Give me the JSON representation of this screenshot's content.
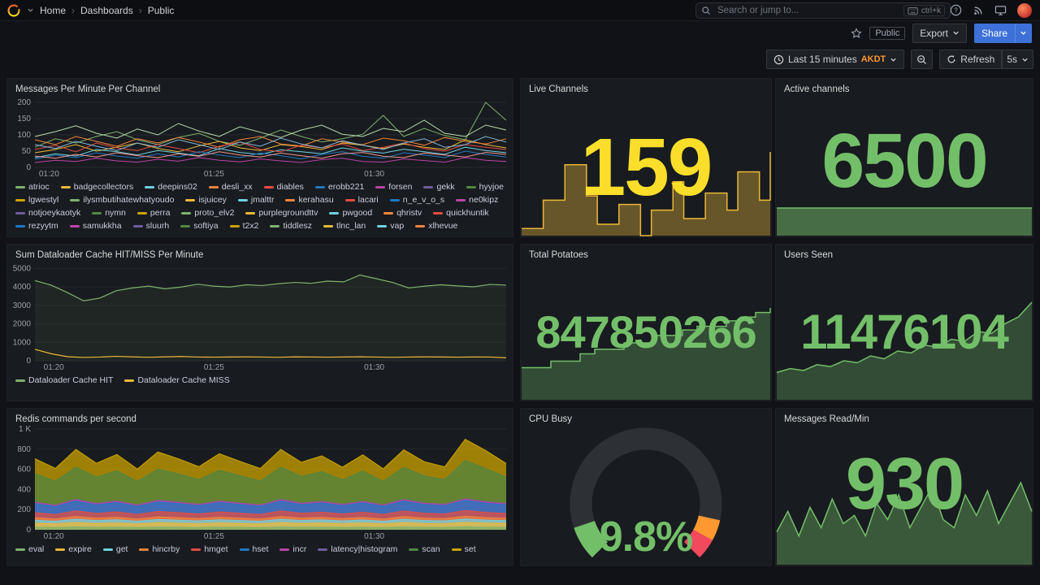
{
  "nav": {
    "breadcrumb": [
      "Home",
      "Dashboards",
      "Public"
    ],
    "separator": "›",
    "search_placeholder": "Search or jump to...",
    "search_shortcut": "ctrl+k"
  },
  "toolbar": {
    "tag": "Public",
    "export_label": "Export",
    "share_label": "Share"
  },
  "timebar": {
    "range": "Last 15 minutes",
    "timezone": "AKDT",
    "refresh_label": "Refresh",
    "interval": "5s"
  },
  "colors": {
    "timezone": "#FF9830",
    "share_blue": "#3D71D9",
    "stat_yellow": "#FADE2A",
    "stat_green": "#73BF69"
  },
  "panels": [
    {
      "title": "Messages Per Minute Per Channel",
      "kind": "timeseries",
      "ymax": 210,
      "y_ticks": [
        0,
        50,
        100,
        150,
        200
      ],
      "y_tick_labels": [
        "0",
        "50",
        "100",
        "150",
        "200"
      ],
      "x_ticks": [
        "01:20",
        "01:25",
        "01:30"
      ],
      "x_tick_pos": [
        0.03,
        0.38,
        0.72
      ],
      "legend": [
        {
          "label": "atrioc",
          "color": "#7EB26D"
        },
        {
          "label": "badgecollectors",
          "color": "#EAB839"
        },
        {
          "label": "deepins02",
          "color": "#6ED0E0"
        },
        {
          "label": "desli_xx",
          "color": "#EF843C"
        },
        {
          "label": "diables",
          "color": "#E24D42"
        },
        {
          "label": "erobb221",
          "color": "#1F78C1"
        },
        {
          "label": "forsen",
          "color": "#BA43A9"
        },
        {
          "label": "gekk",
          "color": "#705DA0"
        },
        {
          "label": "hyyjoe",
          "color": "#508642"
        },
        {
          "label": "lgwestyl",
          "color": "#CCA300"
        },
        {
          "label": "ilysmbutihatewhatyoudo",
          "color": "#7EB26D"
        },
        {
          "label": "isjuicey",
          "color": "#EAB839"
        },
        {
          "label": "jmalttr",
          "color": "#6ED0E0"
        },
        {
          "label": "kerahasu",
          "color": "#EF843C"
        },
        {
          "label": "lacari",
          "color": "#E24D42"
        },
        {
          "label": "n_e_v_o_s",
          "color": "#1F78C1"
        },
        {
          "label": "ne0kipz",
          "color": "#BA43A9"
        },
        {
          "label": "notjoeykaotyk",
          "color": "#705DA0"
        },
        {
          "label": "nymn",
          "color": "#508642"
        },
        {
          "label": "perra",
          "color": "#CCA300"
        },
        {
          "label": "proto_elv2",
          "color": "#7EB26D"
        },
        {
          "label": "purplegroundttv",
          "color": "#EAB839"
        },
        {
          "label": "pwgood",
          "color": "#6ED0E0"
        },
        {
          "label": "qhristv",
          "color": "#EF843C"
        },
        {
          "label": "quickhuntik",
          "color": "#E24D42"
        },
        {
          "label": "rezyytm",
          "color": "#1F78C1"
        },
        {
          "label": "samukkha",
          "color": "#BA43A9"
        },
        {
          "label": "sluurh",
          "color": "#705DA0"
        },
        {
          "label": "softiya",
          "color": "#508642"
        },
        {
          "label": "t2x2",
          "color": "#CCA300"
        },
        {
          "label": "tiddlesz",
          "color": "#7EB26D"
        },
        {
          "label": "tlnc_lan",
          "color": "#EAB839"
        },
        {
          "label": "vap",
          "color": "#6ED0E0"
        },
        {
          "label": "xlhevue",
          "color": "#EF843C"
        }
      ],
      "series": [
        {
          "color": "#7EB26D",
          "values": [
            62,
            88,
            75,
            95,
            110,
            85,
            70,
            92,
            105,
            80,
            68,
            90,
            115,
            95,
            78,
            88,
            102,
            160,
            95,
            120,
            98,
            85,
            200,
            145
          ]
        },
        {
          "color": "#EAB839",
          "values": [
            45,
            55,
            70,
            50,
            62,
            75,
            58,
            48,
            66,
            80,
            60,
            52,
            70,
            64,
            55,
            75,
            68,
            58,
            72,
            62,
            55,
            85,
            70,
            60
          ]
        },
        {
          "color": "#6ED0E0",
          "values": [
            30,
            42,
            35,
            55,
            48,
            38,
            52,
            44,
            36,
            58,
            46,
            40,
            54,
            48,
            42,
            60,
            50,
            44,
            56,
            48,
            40,
            62,
            52,
            45
          ]
        },
        {
          "color": "#EF843C",
          "values": [
            85,
            70,
            95,
            80,
            65,
            88,
            75,
            92,
            78,
            62,
            85,
            95,
            72,
            66,
            88,
            78,
            70,
            90,
            82,
            68,
            92,
            80,
            72,
            88
          ]
        },
        {
          "color": "#E24D42",
          "values": [
            55,
            68,
            48,
            75,
            60,
            52,
            70,
            58,
            45,
            65,
            78,
            55,
            48,
            68,
            60,
            72,
            52,
            62,
            75,
            58,
            50,
            70,
            62,
            55
          ]
        },
        {
          "color": "#1F78C1",
          "values": [
            25,
            38,
            30,
            45,
            35,
            28,
            42,
            32,
            48,
            38,
            30,
            44,
            36,
            26,
            40,
            48,
            34,
            28,
            45,
            38,
            30,
            50,
            40,
            32
          ]
        },
        {
          "color": "#BA43A9",
          "values": [
            15,
            22,
            18,
            28,
            20,
            16,
            25,
            19,
            30,
            22,
            17,
            26,
            20,
            15,
            24,
            28,
            18,
            16,
            26,
            21,
            16,
            30,
            22,
            18
          ]
        },
        {
          "color": "#B7DBAB",
          "values": [
            95,
            110,
            128,
            105,
            90,
            118,
            100,
            135,
            112,
            95,
            125,
            108,
            92,
            115,
            130,
            102,
            95,
            120,
            110,
            145,
            105,
            95,
            130,
            115
          ]
        },
        {
          "color": "#F29191",
          "values": [
            35,
            28,
            40,
            32,
            45,
            36,
            30,
            42,
            34,
            48,
            38,
            32,
            44,
            36,
            28,
            42,
            46,
            34,
            30,
            44,
            38,
            32,
            46,
            40
          ]
        },
        {
          "color": "#82B5D8",
          "values": [
            70,
            58,
            80,
            65,
            52,
            75,
            62,
            85,
            70,
            55,
            78,
            65,
            90,
            72,
            60,
            82,
            68,
            55,
            75,
            88,
            62,
            70,
            95,
            78
          ]
        }
      ]
    },
    {
      "title": "Live Channels",
      "value": "159",
      "value_color": "#FADE2A",
      "spark": {
        "kind": "spark",
        "color": "#EAB839",
        "fill_opacity": 0.38,
        "stepped": true,
        "mode": "minmax",
        "values": [
          105,
          105,
          125,
          125,
          150,
          150,
          128,
          108,
          108,
          122,
          122,
          100,
          118,
          118,
          138,
          112,
          112,
          130,
          130,
          118,
          145,
          145,
          125,
          159
        ]
      }
    },
    {
      "title": "Active channels",
      "value": "6500",
      "value_color": "#73BF69",
      "spark": {
        "kind": "spark",
        "color": "#73BF69",
        "fill_opacity": 0.5,
        "stepped": false,
        "mode": "minmax",
        "values": [
          1,
          1,
          1,
          1,
          1,
          1,
          1,
          1
        ]
      }
    },
    {
      "title": "Sum Dataloader Cache HIT/MISS Per Minute",
      "kind": "timeseries",
      "ymax": 5200,
      "y_ticks": [
        0,
        1000,
        2000,
        3000,
        4000,
        5000
      ],
      "y_tick_labels": [
        "0",
        "1000",
        "2000",
        "3000",
        "4000",
        "5000"
      ],
      "x_ticks": [
        "01:20",
        "01:25",
        "01:30"
      ],
      "x_tick_pos": [
        0.04,
        0.38,
        0.72
      ],
      "legend": [
        {
          "label": "Dataloader Cache HIT",
          "color": "#7EB26D"
        },
        {
          "label": "Dataloader Cache MISS",
          "color": "#EAB839"
        }
      ],
      "series": [
        {
          "color": "#7EB26D",
          "fill_opacity": 0.07,
          "width": 1.2,
          "values": [
            4350,
            4100,
            3700,
            3250,
            3400,
            3800,
            3950,
            4050,
            3900,
            4000,
            4150,
            4050,
            4000,
            4120,
            4080,
            4180,
            4250,
            4200,
            4320,
            4280,
            4650,
            4450,
            4250,
            3950,
            4050,
            4120,
            4060,
            4010,
            4140,
            4100
          ]
        },
        {
          "color": "#EAB839",
          "width": 1.2,
          "values": [
            620,
            380,
            220,
            180,
            200,
            240,
            210,
            190,
            210,
            230,
            200,
            195,
            205,
            210,
            200,
            190,
            210,
            205,
            195,
            205,
            215,
            200,
            190,
            200,
            210,
            205,
            195,
            205,
            200,
            160
          ]
        }
      ]
    },
    {
      "title": "Total Potatoes",
      "value": "847850266",
      "value_color": "#73BF69",
      "spark": {
        "kind": "spark",
        "color": "#73BF69",
        "fill_opacity": 0.3,
        "stepped": true,
        "mode": "zero",
        "values": [
          35,
          35,
          42,
          42,
          50,
          55,
          55,
          62,
          62,
          70,
          70,
          76,
          80,
          80,
          86,
          90,
          95,
          100
        ]
      }
    },
    {
      "title": "Users Seen",
      "value": "11476104",
      "value_color": "#73BF69",
      "spark": {
        "kind": "spark",
        "color": "#73BF69",
        "fill_opacity": 0.3,
        "stepped": false,
        "mode": "zero",
        "values": [
          28,
          32,
          30,
          36,
          34,
          40,
          38,
          45,
          42,
          50,
          48,
          56,
          54,
          62,
          60,
          70,
          68,
          78,
          85,
          100
        ]
      }
    },
    {
      "title": "Redis commands per second",
      "kind": "timeseries",
      "stacked": true,
      "ymax": 1000,
      "y_ticks": [
        0,
        200,
        400,
        600,
        800,
        1000
      ],
      "y_tick_labels": [
        "0",
        "200",
        "400",
        "600",
        "800",
        "1 K"
      ],
      "x_ticks": [
        "01:20",
        "01:25",
        "01:30"
      ],
      "x_tick_pos": [
        0.04,
        0.38,
        0.72
      ],
      "legend": [
        {
          "label": "eval",
          "color": "#7EB26D"
        },
        {
          "label": "expire",
          "color": "#EAB839"
        },
        {
          "label": "get",
          "color": "#6ED0E0"
        },
        {
          "label": "hincrby",
          "color": "#EF843C"
        },
        {
          "label": "hmget",
          "color": "#E24D42"
        },
        {
          "label": "hset",
          "color": "#1F78C1"
        },
        {
          "label": "incr",
          "color": "#BA43A9"
        },
        {
          "label": "latency|histogram",
          "color": "#705DA0"
        },
        {
          "label": "scan",
          "color": "#508642"
        },
        {
          "label": "set",
          "color": "#CCA300"
        }
      ],
      "series": [
        {
          "color": "#7EB26D",
          "values": [
            25,
            22,
            28,
            24,
            26,
            22,
            27,
            25,
            23,
            26,
            24,
            22,
            27,
            24,
            26,
            23,
            25,
            22,
            27,
            24,
            23,
            28,
            25,
            24
          ]
        },
        {
          "color": "#EAB839",
          "values": [
            40,
            36,
            44,
            38,
            42,
            36,
            43,
            40,
            37,
            42,
            39,
            36,
            44,
            39,
            41,
            37,
            42,
            36,
            44,
            39,
            37,
            45,
            41,
            38
          ]
        },
        {
          "color": "#6ED0E0",
          "values": [
            30,
            27,
            33,
            29,
            31,
            27,
            32,
            30,
            28,
            31,
            29,
            27,
            33,
            29,
            31,
            28,
            30,
            27,
            33,
            29,
            28,
            34,
            30,
            29
          ]
        },
        {
          "color": "#EF843C",
          "values": [
            25,
            22,
            27,
            24,
            26,
            22,
            26,
            25,
            23,
            26,
            24,
            22,
            27,
            24,
            25,
            23,
            25,
            22,
            27,
            24,
            23,
            27,
            25,
            24
          ]
        },
        {
          "color": "#E24D42",
          "values": [
            50,
            44,
            55,
            47,
            52,
            45,
            53,
            50,
            46,
            52,
            48,
            45,
            55,
            48,
            51,
            46,
            52,
            45,
            55,
            48,
            46,
            57,
            51,
            47
          ]
        },
        {
          "color": "#1F78C1",
          "values": [
            90,
            80,
            98,
            85,
            93,
            81,
            95,
            90,
            83,
            93,
            87,
            81,
            98,
            86,
            92,
            83,
            93,
            81,
            98,
            87,
            83,
            100,
            92,
            85
          ]
        },
        {
          "color": "#BA43A9",
          "values": [
            10,
            9,
            11,
            10,
            10,
            9,
            11,
            10,
            9,
            10,
            10,
            9,
            11,
            10,
            10,
            9,
            10,
            9,
            11,
            10,
            9,
            11,
            10,
            10
          ]
        },
        {
          "color": "#705DA0",
          "values": [
            5,
            4,
            6,
            5,
            5,
            4,
            6,
            5,
            4,
            5,
            5,
            4,
            6,
            5,
            5,
            4,
            5,
            4,
            6,
            5,
            4,
            6,
            5,
            5
          ]
        },
        {
          "color": "#508642",
          "values": [
            280,
            240,
            320,
            260,
            300,
            235,
            310,
            280,
            245,
            305,
            270,
            238,
            320,
            265,
            295,
            242,
            300,
            236,
            318,
            268,
            245,
            380,
            330,
            260
          ]
        },
        {
          "color": "#CCA300",
          "values": [
            150,
            125,
            175,
            138,
            162,
            122,
            170,
            150,
            128,
            165,
            144,
            124,
            176,
            140,
            158,
            126,
            162,
            123,
            174,
            142,
            126,
            210,
            178,
            136
          ]
        }
      ]
    },
    {
      "title": "CPU Busy",
      "value_text": "9.8%",
      "value_color": "#73BF69",
      "gauge": {
        "kind": "gauge",
        "value": 9.8,
        "max": 100,
        "color": "#73BF69",
        "track_color": "#2d3136",
        "segments": [
          {
            "from": 88,
            "to": 94,
            "color": "#FF9830"
          },
          {
            "from": 94,
            "to": 100,
            "color": "#F2495C"
          }
        ]
      }
    },
    {
      "title": "Messages Read/Min",
      "value": "930",
      "value_color": "#73BF69",
      "spark": {
        "kind": "spark",
        "color": "#73BF69",
        "fill_opacity": 0.38,
        "stepped": false,
        "mode": "zero",
        "values": [
          40,
          65,
          35,
          70,
          45,
          80,
          50,
          60,
          35,
          75,
          55,
          85,
          45,
          70,
          95,
          55,
          45,
          85,
          60,
          90,
          50,
          75,
          100,
          65
        ]
      }
    }
  ]
}
